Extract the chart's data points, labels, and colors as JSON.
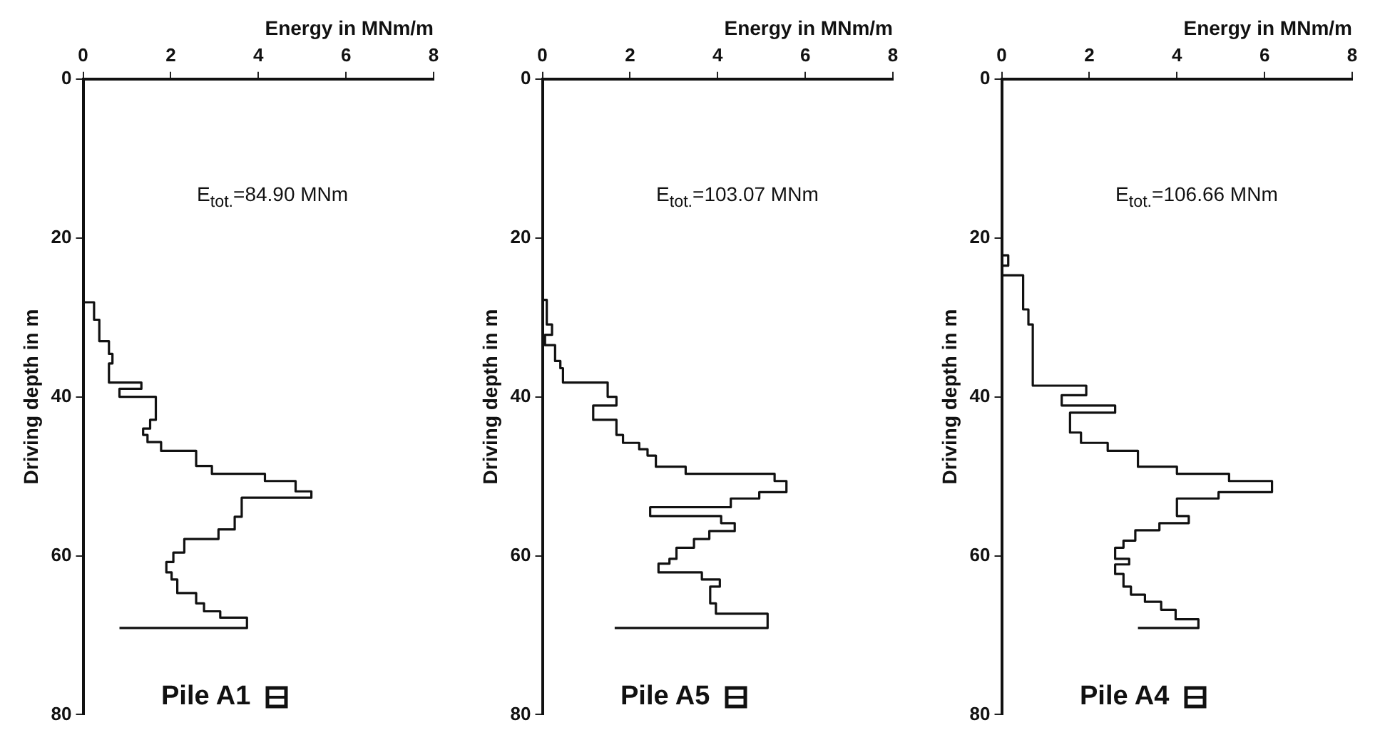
{
  "chart_data": [
    {
      "type": "line",
      "title": "Pile A1",
      "xlabel": "Energy in MNm/m",
      "ylabel": "Driving depth in m",
      "annotations": [
        "E$_{tot.}$=84.90 MNm"
      ],
      "xlim": [
        0,
        8
      ],
      "xticks": [
        0,
        2,
        4,
        6,
        8
      ],
      "ylim": [
        80,
        0
      ],
      "yticks": [
        0,
        20,
        40,
        60,
        80
      ],
      "grid": false,
      "legend": false,
      "series": [
        {
          "color": "#111111",
          "x": [
            0,
            0,
            0.25,
            0.25,
            0.37,
            0.37,
            0.59,
            0.59,
            0.67,
            0.67,
            0.59,
            0.59,
            1.33,
            1.33,
            0.83,
            0.83,
            1.66,
            1.66,
            1.53,
            1.53,
            1.37,
            1.37,
            1.47,
            1.47,
            1.78,
            1.78,
            2.58,
            2.58,
            2.94,
            2.94,
            4.15,
            4.15,
            4.85,
            4.85,
            5.21,
            5.21,
            3.62,
            3.62,
            3.46,
            3.46,
            3.09,
            3.09,
            2.31,
            2.31,
            2.06,
            2.06,
            1.9,
            1.9,
            2.02,
            2.02,
            2.15,
            2.15,
            2.58,
            2.58,
            2.76,
            2.76,
            3.13,
            3.13,
            3.74,
            3.74,
            0.83
          ],
          "values": [
            0,
            28.1,
            28.1,
            30.3,
            30.3,
            33,
            33,
            34.6,
            34.6,
            35.8,
            35.8,
            38.2,
            38.2,
            39,
            39,
            40,
            40,
            42.9,
            42.9,
            44,
            44,
            44.8,
            44.8,
            45.7,
            45.7,
            46.8,
            46.8,
            48.7,
            48.7,
            49.7,
            49.7,
            50.6,
            50.6,
            51.9,
            51.9,
            52.7,
            52.7,
            55.1,
            55.1,
            56.7,
            56.7,
            57.9,
            57.9,
            59.6,
            59.6,
            60.8,
            60.8,
            62.1,
            62.1,
            63,
            63,
            64.7,
            64.7,
            66,
            66,
            67,
            67,
            67.8,
            67.8,
            69.1,
            69.1
          ]
        }
      ]
    },
    {
      "type": "line",
      "title": "Pile A5",
      "xlabel": "Energy in MNm/m",
      "ylabel": "Driving depth in m",
      "annotations": [
        "E$_{tot.}$=103.07 MNm"
      ],
      "xlim": [
        0,
        8
      ],
      "xticks": [
        0,
        2,
        4,
        6,
        8
      ],
      "ylim": [
        80,
        0
      ],
      "yticks": [
        0,
        20,
        40,
        60,
        80
      ],
      "grid": false,
      "legend": false,
      "series": [
        {
          "color": "#111111",
          "x": [
            0,
            0,
            0.1,
            0.1,
            0.22,
            0.22,
            0.06,
            0.06,
            0.29,
            0.29,
            0.41,
            0.41,
            0.47,
            0.47,
            1.49,
            1.49,
            1.69,
            1.69,
            1.16,
            1.16,
            1.69,
            1.69,
            1.84,
            1.84,
            2.21,
            2.21,
            2.4,
            2.4,
            2.59,
            2.59,
            3.27,
            3.27,
            5.3,
            5.3,
            5.57,
            5.57,
            4.95,
            4.95,
            4.3,
            4.3,
            2.46,
            2.46,
            4.08,
            4.08,
            4.39,
            4.39,
            3.81,
            3.81,
            3.46,
            3.46,
            3.06,
            3.06,
            2.9,
            2.9,
            2.65,
            2.65,
            3.64,
            3.64,
            4.05,
            4.05,
            3.83,
            3.83,
            3.96,
            3.96,
            5.14,
            5.14,
            1.65
          ],
          "values": [
            0,
            27.8,
            27.8,
            30.9,
            30.9,
            32.2,
            32.2,
            33.5,
            33.5,
            35.5,
            35.5,
            36.4,
            36.4,
            38.2,
            38.2,
            40,
            40,
            41.1,
            41.1,
            42.9,
            42.9,
            44.8,
            44.8,
            45.8,
            45.8,
            46.6,
            46.6,
            47.4,
            47.4,
            48.8,
            48.8,
            49.7,
            49.7,
            50.6,
            50.6,
            52,
            52,
            52.8,
            52.8,
            53.9,
            53.9,
            55,
            55,
            55.9,
            55.9,
            56.9,
            56.9,
            57.9,
            57.9,
            59,
            59,
            60.4,
            60.4,
            61,
            61,
            62.1,
            62.1,
            63,
            63,
            63.9,
            63.9,
            66,
            66,
            67.3,
            67.3,
            69.1,
            69.1
          ]
        }
      ]
    },
    {
      "type": "line",
      "title": "Pile A4",
      "xlabel": "Energy in MNm/m",
      "ylabel": "Driving depth in m",
      "annotations": [
        "E$_{tot.}$=106.66 MNm"
      ],
      "xlim": [
        0,
        8
      ],
      "xticks": [
        0,
        2,
        4,
        6,
        8
      ],
      "ylim": [
        80,
        0
      ],
      "yticks": [
        0,
        20,
        40,
        60,
        80
      ],
      "grid": false,
      "legend": false,
      "series": [
        {
          "color": "#111111",
          "x": [
            0,
            0,
            0.15,
            0.15,
            0,
            0,
            0.49,
            0.49,
            0.61,
            0.61,
            0.71,
            0.71,
            1.93,
            1.93,
            1.37,
            1.37,
            2.59,
            2.59,
            1.56,
            1.56,
            1.81,
            1.81,
            2.42,
            2.42,
            3.11,
            3.11,
            4,
            4,
            5.19,
            5.19,
            6.17,
            6.17,
            4.95,
            4.95,
            4,
            4,
            4.27,
            4.27,
            3.6,
            3.6,
            3.05,
            3.05,
            2.78,
            2.78,
            2.59,
            2.59,
            2.91,
            2.91,
            2.59,
            2.59,
            2.78,
            2.78,
            2.95,
            2.95,
            3.27,
            3.27,
            3.64,
            3.64,
            3.97,
            3.97,
            4.49,
            4.49,
            3.11
          ],
          "values": [
            0,
            22.2,
            22.2,
            23.5,
            23.5,
            24.7,
            24.7,
            29,
            29,
            30.9,
            30.9,
            38.6,
            38.6,
            39.8,
            39.8,
            41.1,
            41.1,
            42,
            42,
            44.5,
            44.5,
            45.8,
            45.8,
            46.8,
            46.8,
            48.8,
            48.8,
            49.7,
            49.7,
            50.6,
            50.6,
            52,
            52,
            52.8,
            52.8,
            55,
            55,
            55.9,
            55.9,
            56.8,
            56.8,
            58.1,
            58.1,
            59,
            59,
            60.4,
            60.4,
            61.1,
            61.1,
            62.3,
            62.3,
            63.9,
            63.9,
            64.9,
            64.9,
            65.8,
            65.8,
            66.8,
            66.8,
            68,
            68,
            69.1,
            69.1
          ]
        }
      ]
    }
  ]
}
